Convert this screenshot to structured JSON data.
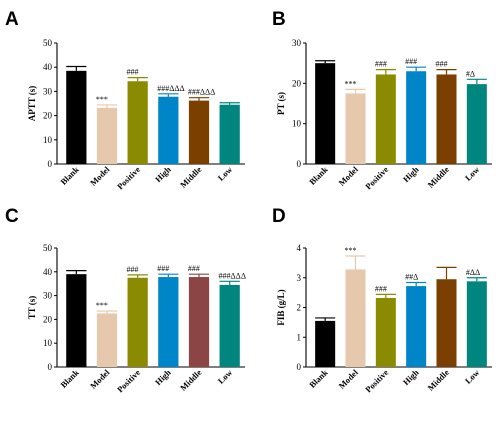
{
  "chart_data": [
    {
      "type": "bar",
      "panel": "A",
      "categories": [
        "Blank",
        "Model",
        "Positive",
        "High",
        "Middle",
        "Low"
      ],
      "values": [
        38.5,
        23.2,
        34.2,
        27.8,
        26.2,
        24.5
      ],
      "errors": [
        1.8,
        1.2,
        1.5,
        1.2,
        1.2,
        0.8
      ],
      "annotations": [
        "",
        "***",
        "###",
        "###ΔΔΔ",
        "###ΔΔΔ",
        ""
      ],
      "colors": [
        "#000000",
        "#e6c9ad",
        "#8a8b00",
        "#0085c8",
        "#7b4000",
        "#00857f"
      ],
      "ylabel": "APTT (s)",
      "ylim": [
        0,
        50
      ],
      "yticks": [
        0,
        10,
        20,
        30,
        40,
        50
      ]
    },
    {
      "type": "bar",
      "panel": "B",
      "categories": [
        "Blank",
        "Model",
        "Positive",
        "High",
        "Middle",
        "Low"
      ],
      "values": [
        25.0,
        17.5,
        22.2,
        23.0,
        22.2,
        19.8
      ],
      "errors": [
        0.6,
        1.0,
        1.2,
        1.0,
        1.2,
        1.2
      ],
      "annotations": [
        "",
        "***",
        "###",
        "###",
        "###",
        "#Δ"
      ],
      "colors": [
        "#000000",
        "#e6c9ad",
        "#8a8b00",
        "#0085c8",
        "#7b4000",
        "#00857f"
      ],
      "ylabel": "PT (s)",
      "ylim": [
        0,
        30
      ],
      "yticks": [
        0,
        10,
        20,
        30
      ]
    },
    {
      "type": "bar",
      "panel": "C",
      "categories": [
        "Blank",
        "Model",
        "Positive",
        "High",
        "Middle",
        "Low"
      ],
      "values": [
        39.0,
        22.5,
        37.5,
        37.8,
        37.8,
        34.5
      ],
      "errors": [
        1.5,
        1.0,
        1.2,
        1.2,
        1.2,
        1.5
      ],
      "annotations": [
        "",
        "***",
        "###",
        "###",
        "###",
        "###ΔΔΔ"
      ],
      "colors": [
        "#000000",
        "#e6c9ad",
        "#8a8b00",
        "#0085c8",
        "#8b4545",
        "#00857f"
      ],
      "ylabel": "TT (s)",
      "ylim": [
        0,
        50
      ],
      "yticks": [
        0,
        10,
        20,
        30,
        40,
        50
      ]
    },
    {
      "type": "bar",
      "panel": "D",
      "categories": [
        "Blank",
        "Model",
        "Positive",
        "High",
        "Middle",
        "Low"
      ],
      "values": [
        1.55,
        3.28,
        2.32,
        2.72,
        2.95,
        2.88
      ],
      "errors": [
        0.1,
        0.45,
        0.12,
        0.12,
        0.4,
        0.12
      ],
      "annotations": [
        "",
        "***",
        "###",
        "##Δ",
        "",
        "#ΔΔ"
      ],
      "colors": [
        "#000000",
        "#e6c9ad",
        "#8a8b00",
        "#0085c8",
        "#7b4000",
        "#00857f"
      ],
      "ylabel": "FIB (g/L)",
      "ylim": [
        0,
        4
      ],
      "yticks": [
        0,
        1,
        2,
        3,
        4
      ]
    }
  ]
}
